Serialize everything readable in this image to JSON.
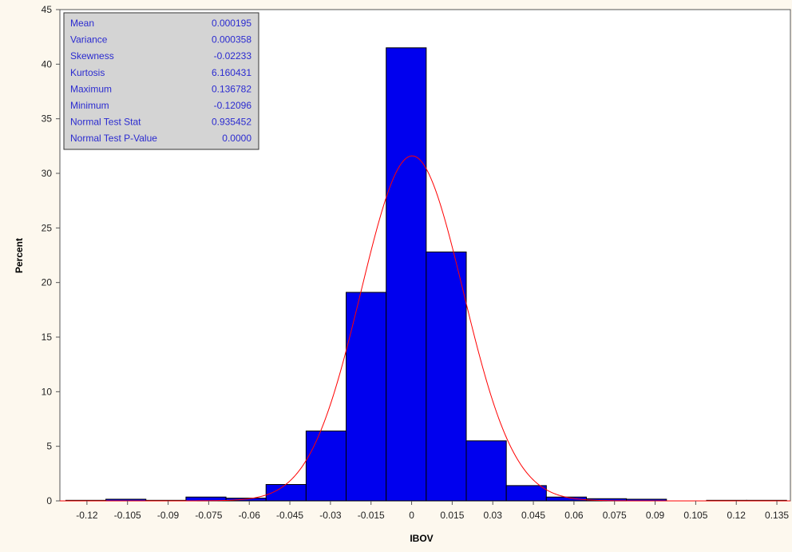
{
  "chart_data": {
    "type": "bar",
    "xlabel": "IBOV",
    "ylabel": "Percent",
    "xlim": [
      -0.13,
      0.14
    ],
    "ylim": [
      0,
      45
    ],
    "x_ticks": [
      "-0.12",
      "-0.105",
      "-0.09",
      "-0.075",
      "-0.06",
      "-0.045",
      "-0.03",
      "-0.015",
      "0",
      "0.015",
      "0.03",
      "0.045",
      "0.06",
      "0.075",
      "0.09",
      "0.105",
      "0.12",
      "0.135"
    ],
    "y_ticks": [
      "0",
      "5",
      "10",
      "15",
      "20",
      "25",
      "30",
      "35",
      "40",
      "45"
    ],
    "bin_width": 0.0148,
    "bins": [
      {
        "x0": -0.1278,
        "value": 0.05
      },
      {
        "x0": -0.113,
        "value": 0.15
      },
      {
        "x0": -0.0982,
        "value": 0.05
      },
      {
        "x0": -0.0834,
        "value": 0.35
      },
      {
        "x0": -0.0686,
        "value": 0.25
      },
      {
        "x0": -0.0538,
        "value": 1.5
      },
      {
        "x0": -0.039,
        "value": 6.4
      },
      {
        "x0": -0.0242,
        "value": 19.1
      },
      {
        "x0": -0.0094,
        "value": 41.5
      },
      {
        "x0": 0.0054,
        "value": 22.8
      },
      {
        "x0": 0.0202,
        "value": 5.5
      },
      {
        "x0": 0.035,
        "value": 1.4
      },
      {
        "x0": 0.0498,
        "value": 0.35
      },
      {
        "x0": 0.0646,
        "value": 0.2
      },
      {
        "x0": 0.0794,
        "value": 0.15
      },
      {
        "x0": 0.0942,
        "value": 0.0
      },
      {
        "x0": 0.109,
        "value": 0.05
      },
      {
        "x0": 0.1238,
        "value": 0.05
      }
    ],
    "normal_curve": {
      "mean": 0.000195,
      "std": 0.01892,
      "peak": 31.6,
      "color": "#ff0000"
    },
    "bar_color": "#0000ee",
    "background": "#ffffff",
    "stats": [
      {
        "label": "Mean",
        "value": "0.000195"
      },
      {
        "label": "Variance",
        "value": "0.000358"
      },
      {
        "label": "Skewness",
        "value": "-0.02233"
      },
      {
        "label": "Kurtosis",
        "value": "6.160431"
      },
      {
        "label": "Maximum",
        "value": "0.136782"
      },
      {
        "label": "Minimum",
        "value": "-0.12096"
      },
      {
        "label": "Normal Test Stat",
        "value": "0.935452"
      },
      {
        "label": "Normal Test P-Value",
        "value": "0.0000"
      }
    ]
  }
}
